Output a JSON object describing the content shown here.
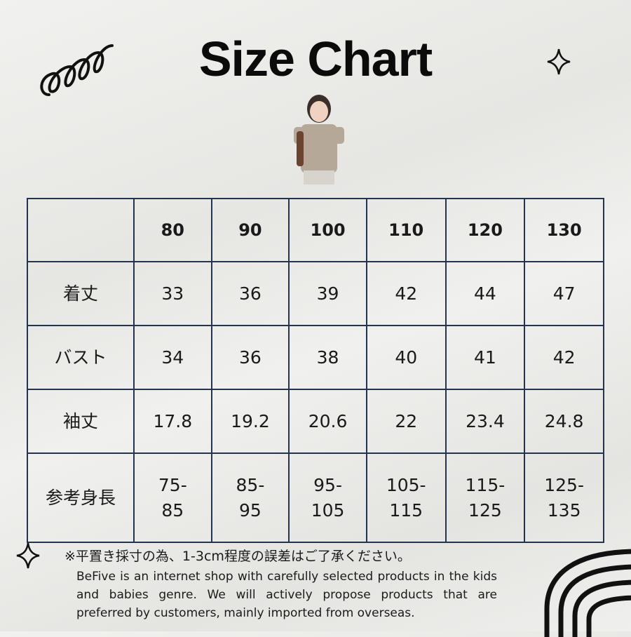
{
  "title": "Size Chart",
  "table": {
    "headers": [
      "",
      "80",
      "90",
      "100",
      "110",
      "120",
      "130"
    ],
    "rows": [
      {
        "label": "着丈",
        "values": [
          "33",
          "36",
          "39",
          "42",
          "44",
          "47"
        ]
      },
      {
        "label": "バスト",
        "values": [
          "34",
          "36",
          "38",
          "40",
          "41",
          "42"
        ]
      },
      {
        "label": "袖丈",
        "values": [
          "17.8",
          "19.2",
          "20.6",
          "22",
          "23.4",
          "24.8"
        ]
      },
      {
        "label": "参考身長",
        "values": [
          [
            "75-",
            "85"
          ],
          [
            "85-",
            "95"
          ],
          [
            "95-",
            "105"
          ],
          [
            "105-",
            "115"
          ],
          [
            "115-",
            "125"
          ],
          [
            "125-",
            "135"
          ]
        ]
      }
    ]
  },
  "note": "※平置き採寸の為、1-3cm程度の誤差はご了承ください。",
  "about": "BeFive is an internet shop with carefully selected products in the kids and babies genre. We will actively propose products that are preferred by customers, mainly imported from overseas.",
  "colors": {
    "border": "#22344f",
    "background": "#ececea",
    "text": "#111111"
  }
}
